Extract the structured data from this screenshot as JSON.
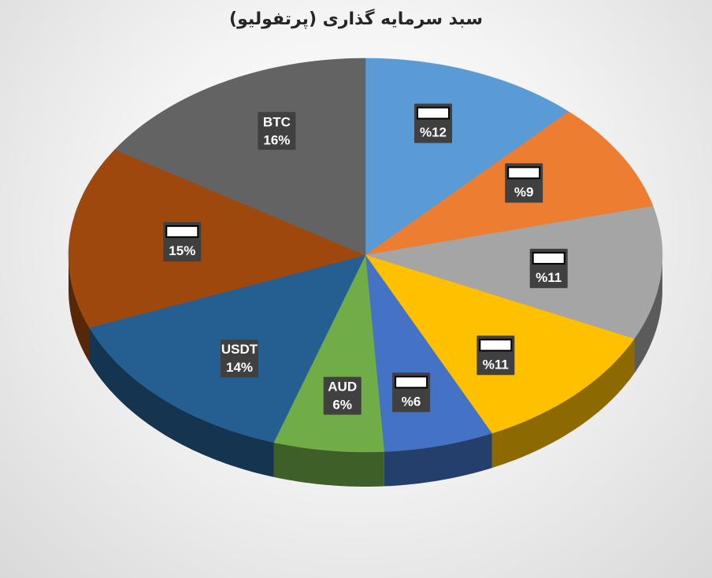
{
  "chart_data": {
    "type": "pie",
    "title": "سبد سرمایه گذاری (پرتفولیو)",
    "slices": [
      {
        "label": "",
        "value_label": "%12",
        "value": 12,
        "color": "#5b9bd5"
      },
      {
        "label": "",
        "value_label": "%9",
        "value": 9,
        "color": "#ed7d31"
      },
      {
        "label": "",
        "value_label": "%11",
        "value": 11,
        "color": "#a5a5a5"
      },
      {
        "label": "",
        "value_label": "%11",
        "value": 11,
        "color": "#ffc000"
      },
      {
        "label": "",
        "value_label": "%6",
        "value": 6,
        "color": "#4472c4"
      },
      {
        "label": "AUD",
        "value_label": "6%",
        "value": 6,
        "color": "#70ad47"
      },
      {
        "label": "USDT",
        "value_label": "14%",
        "value": 14,
        "color": "#255e91"
      },
      {
        "label": "",
        "value_label": "15%",
        "value": 15,
        "color": "#9e480e"
      },
      {
        "label": "BTC",
        "value_label": "16%",
        "value": 16,
        "color": "#636363"
      }
    ]
  }
}
